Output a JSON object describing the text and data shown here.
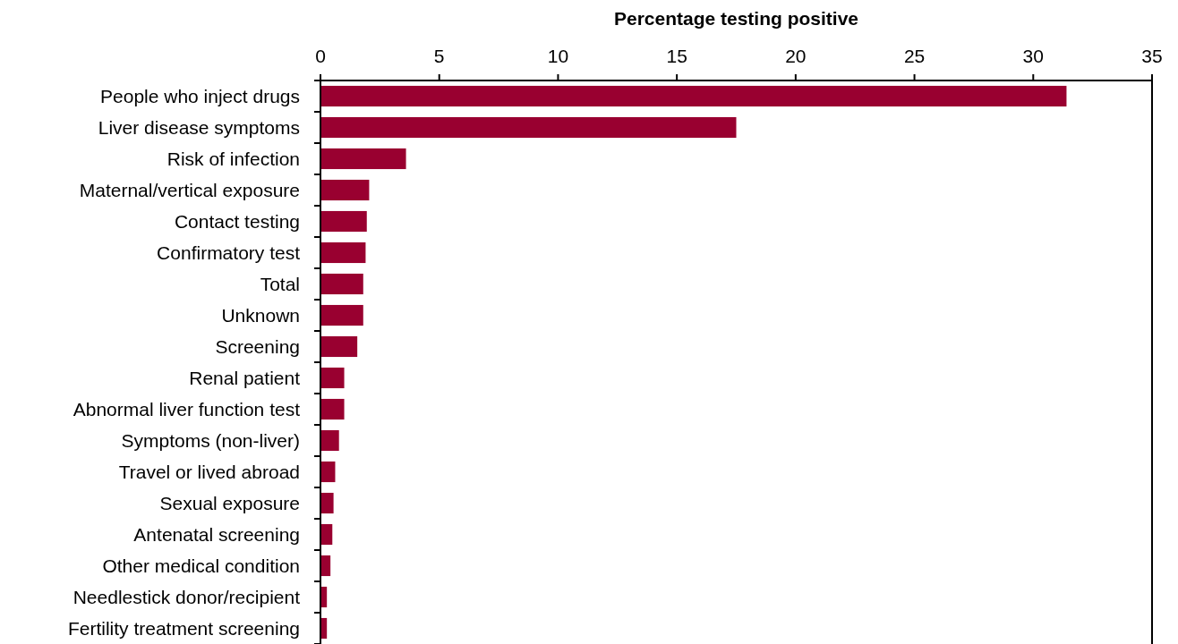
{
  "chart_data": {
    "type": "bar",
    "orientation": "horizontal",
    "xlabel": "Percentage testing positive",
    "categories": [
      "People who inject drugs",
      "Liver disease symptoms",
      "Risk of infection",
      "Maternal/vertical exposure",
      "Contact testing",
      "Confirmatory test",
      "Total",
      "Unknown",
      "Screening",
      "Renal patient",
      "Abnormal liver function test",
      "Symptoms (non-liver)",
      "Travel or lived abroad",
      "Sexual exposure",
      "Antenatal screening",
      "Other medical condition",
      "Needlestick donor/recipient",
      "Fertility treatment screening"
    ],
    "values": [
      31.4,
      17.5,
      3.6,
      2.05,
      1.95,
      1.9,
      1.8,
      1.8,
      1.55,
      1.0,
      1.0,
      0.78,
      0.62,
      0.55,
      0.5,
      0.42,
      0.27,
      0.27
    ],
    "color": "#990030",
    "xlim": [
      0,
      35
    ],
    "xticks": [
      0,
      5,
      10,
      15,
      20,
      25,
      30,
      35
    ],
    "grid": false
  }
}
